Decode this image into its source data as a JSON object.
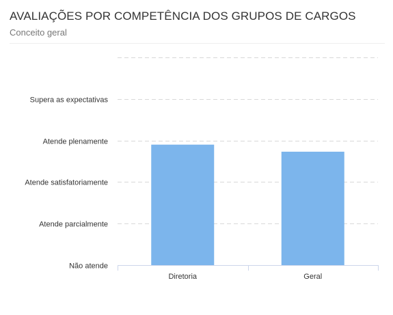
{
  "header": {
    "title": "AVALIAÇÕES POR COMPETÊNCIA DOS GRUPOS DE CARGOS",
    "subtitle": "Conceito geral"
  },
  "chart_data": {
    "type": "bar",
    "title": "AVALIAÇÕES POR COMPETÊNCIA DOS GRUPOS DE CARGOS",
    "subtitle": "Conceito geral",
    "categories": [
      "Diretoria",
      "Geral"
    ],
    "values": [
      3.9,
      3.73
    ],
    "y_ticks": [
      {
        "value": 1,
        "label": "Não atende"
      },
      {
        "value": 2,
        "label": "Atende parcialmente"
      },
      {
        "value": 3,
        "label": "Atende satisfatoriamente"
      },
      {
        "value": 4,
        "label": "Atende plenamente"
      },
      {
        "value": 5,
        "label": "Supera as expectativas"
      },
      {
        "value": 6,
        "label": ""
      }
    ],
    "ylim": [
      1,
      6
    ],
    "xlabel": "",
    "ylabel": "",
    "grid": true,
    "legend": false,
    "bar_color": "#7cb5ec",
    "grid_color": "#d8d8d8",
    "axis_color": "#ccd6eb"
  }
}
